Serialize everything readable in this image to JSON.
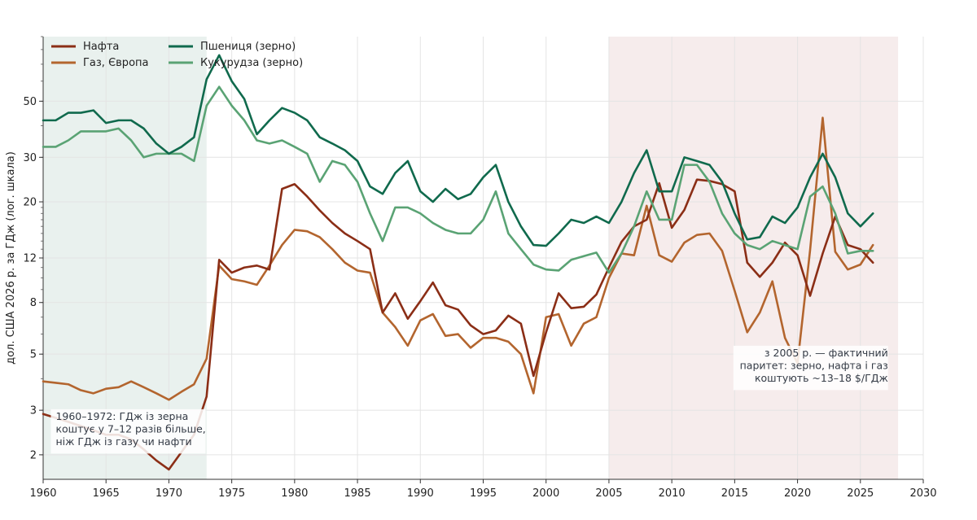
{
  "chart_data": {
    "type": "line",
    "ylabel": "дол. США 2026 р. за ГДж (лог. шкала)",
    "xlabel": "",
    "yscale": "log",
    "xlim": [
      1960,
      2030
    ],
    "ylim": [
      1.6,
      90
    ],
    "grid": true,
    "legend_placement": "top-left",
    "x_ticks": [
      1960,
      1965,
      1970,
      1975,
      1980,
      1985,
      1990,
      1995,
      2000,
      2005,
      2010,
      2015,
      2020,
      2025,
      2030
    ],
    "y_ticks": [
      2,
      3,
      5,
      8,
      12,
      20,
      30,
      50
    ],
    "shaded_regions": [
      {
        "from": 1960,
        "to": 1973,
        "color": "#e9f1ee"
      },
      {
        "from": 2005,
        "to": 2028,
        "color": "#f6ecec"
      }
    ],
    "annotations": [
      {
        "id": "early",
        "lines": [
          "1960–1972: ГДж із зерна",
          "коштує у 7–12 разів більше,",
          "ніж ГДж із газу чи нафти"
        ],
        "align": "left",
        "anchor": [
          1961,
          2.75
        ]
      },
      {
        "id": "late",
        "lines": [
          "з 2005 р. — фактичний",
          "паритет: зерно, нафта і газ",
          "коштують ~13–18 $/ГДж"
        ],
        "align": "right",
        "anchor": [
          2027.2,
          4.9
        ]
      }
    ],
    "x": [
      1960,
      1961,
      1962,
      1963,
      1964,
      1965,
      1966,
      1967,
      1968,
      1969,
      1970,
      1971,
      1972,
      1973,
      1974,
      1975,
      1976,
      1977,
      1978,
      1979,
      1980,
      1981,
      1982,
      1983,
      1984,
      1985,
      1986,
      1987,
      1988,
      1989,
      1990,
      1991,
      1992,
      1993,
      1994,
      1995,
      1996,
      1997,
      1998,
      1999,
      2000,
      2001,
      2002,
      2003,
      2004,
      2005,
      2006,
      2007,
      2008,
      2009,
      2010,
      2011,
      2012,
      2013,
      2014,
      2015,
      2016,
      2017,
      2018,
      2019,
      2020,
      2021,
      2022,
      2023,
      2024,
      2025,
      2026
    ],
    "series": [
      {
        "name": "Нафта",
        "color": "#8b2e16",
        "values": [
          2.9,
          2.8,
          2.7,
          2.6,
          2.5,
          2.4,
          2.4,
          2.3,
          2.1,
          1.9,
          1.75,
          2.05,
          2.4,
          3.4,
          11.8,
          10.5,
          11.0,
          11.2,
          10.8,
          22.5,
          23.5,
          21.0,
          18.5,
          16.5,
          15.0,
          14.0,
          13.0,
          7.3,
          8.7,
          6.9,
          8.1,
          9.6,
          7.8,
          7.5,
          6.5,
          6.0,
          6.2,
          7.1,
          6.6,
          4.1,
          6.1,
          8.7,
          7.6,
          7.7,
          8.6,
          11.0,
          13.9,
          16.0,
          17.0,
          23.7,
          15.8,
          18.6,
          24.5,
          24.2,
          23.5,
          22.0,
          11.5,
          10.1,
          11.5,
          13.8,
          12.3,
          8.5,
          12.5,
          17.5,
          13.5,
          13.0,
          11.5
        ]
      },
      {
        "name": "Газ, Європа",
        "color": "#b3652e",
        "values": [
          3.9,
          3.85,
          3.8,
          3.6,
          3.5,
          3.65,
          3.7,
          3.9,
          3.7,
          3.5,
          3.3,
          3.55,
          3.8,
          4.8,
          11.2,
          9.9,
          9.7,
          9.4,
          11.2,
          13.5,
          15.5,
          15.3,
          14.5,
          13.0,
          11.5,
          10.7,
          10.5,
          7.3,
          6.4,
          5.4,
          6.8,
          7.2,
          5.9,
          6.0,
          5.3,
          5.8,
          5.8,
          5.6,
          5.0,
          3.5,
          7.0,
          7.2,
          5.4,
          6.6,
          7.0,
          10.0,
          12.5,
          12.3,
          19.3,
          12.3,
          11.6,
          13.8,
          14.8,
          15.0,
          12.8,
          8.9,
          6.1,
          7.3,
          9.7,
          5.8,
          4.6,
          12.9,
          43.0,
          12.7,
          10.8,
          11.3,
          13.5
        ]
      },
      {
        "name": "Пшениця (зерно)",
        "color": "#106a4d",
        "values": [
          42,
          42,
          45,
          45,
          46,
          41,
          42,
          42,
          39,
          34,
          31,
          33,
          36,
          61,
          76,
          60,
          51,
          37,
          42,
          47,
          45,
          42,
          36,
          34,
          32,
          29,
          23,
          21.5,
          26,
          29,
          22,
          20,
          22.5,
          20.5,
          21.5,
          25,
          28,
          20,
          16,
          13.5,
          13.4,
          15,
          17,
          16.5,
          17.5,
          16.5,
          20,
          26,
          32,
          22,
          22,
          30,
          29,
          28,
          24,
          18,
          14.2,
          14.5,
          17.5,
          16.5,
          19,
          25,
          31,
          25,
          18,
          16,
          18
        ]
      },
      {
        "name": "Кукурудза (зерно)",
        "color": "#5aa374",
        "values": [
          33,
          33,
          35,
          38,
          38,
          38,
          39,
          35,
          30,
          31,
          31,
          31,
          29,
          48,
          57,
          48,
          42,
          35,
          34,
          35,
          33,
          31,
          24,
          29,
          28,
          24,
          18,
          14,
          19,
          19,
          18,
          16.5,
          15.5,
          15,
          15,
          17,
          22,
          15,
          13,
          11.3,
          10.8,
          10.7,
          11.8,
          12.2,
          12.6,
          10.5,
          12.5,
          16,
          22,
          17,
          17,
          28,
          28,
          24,
          18,
          15,
          13.5,
          13,
          14,
          13.5,
          13,
          21,
          23,
          18,
          12.5,
          12.8,
          12.8
        ]
      }
    ]
  }
}
